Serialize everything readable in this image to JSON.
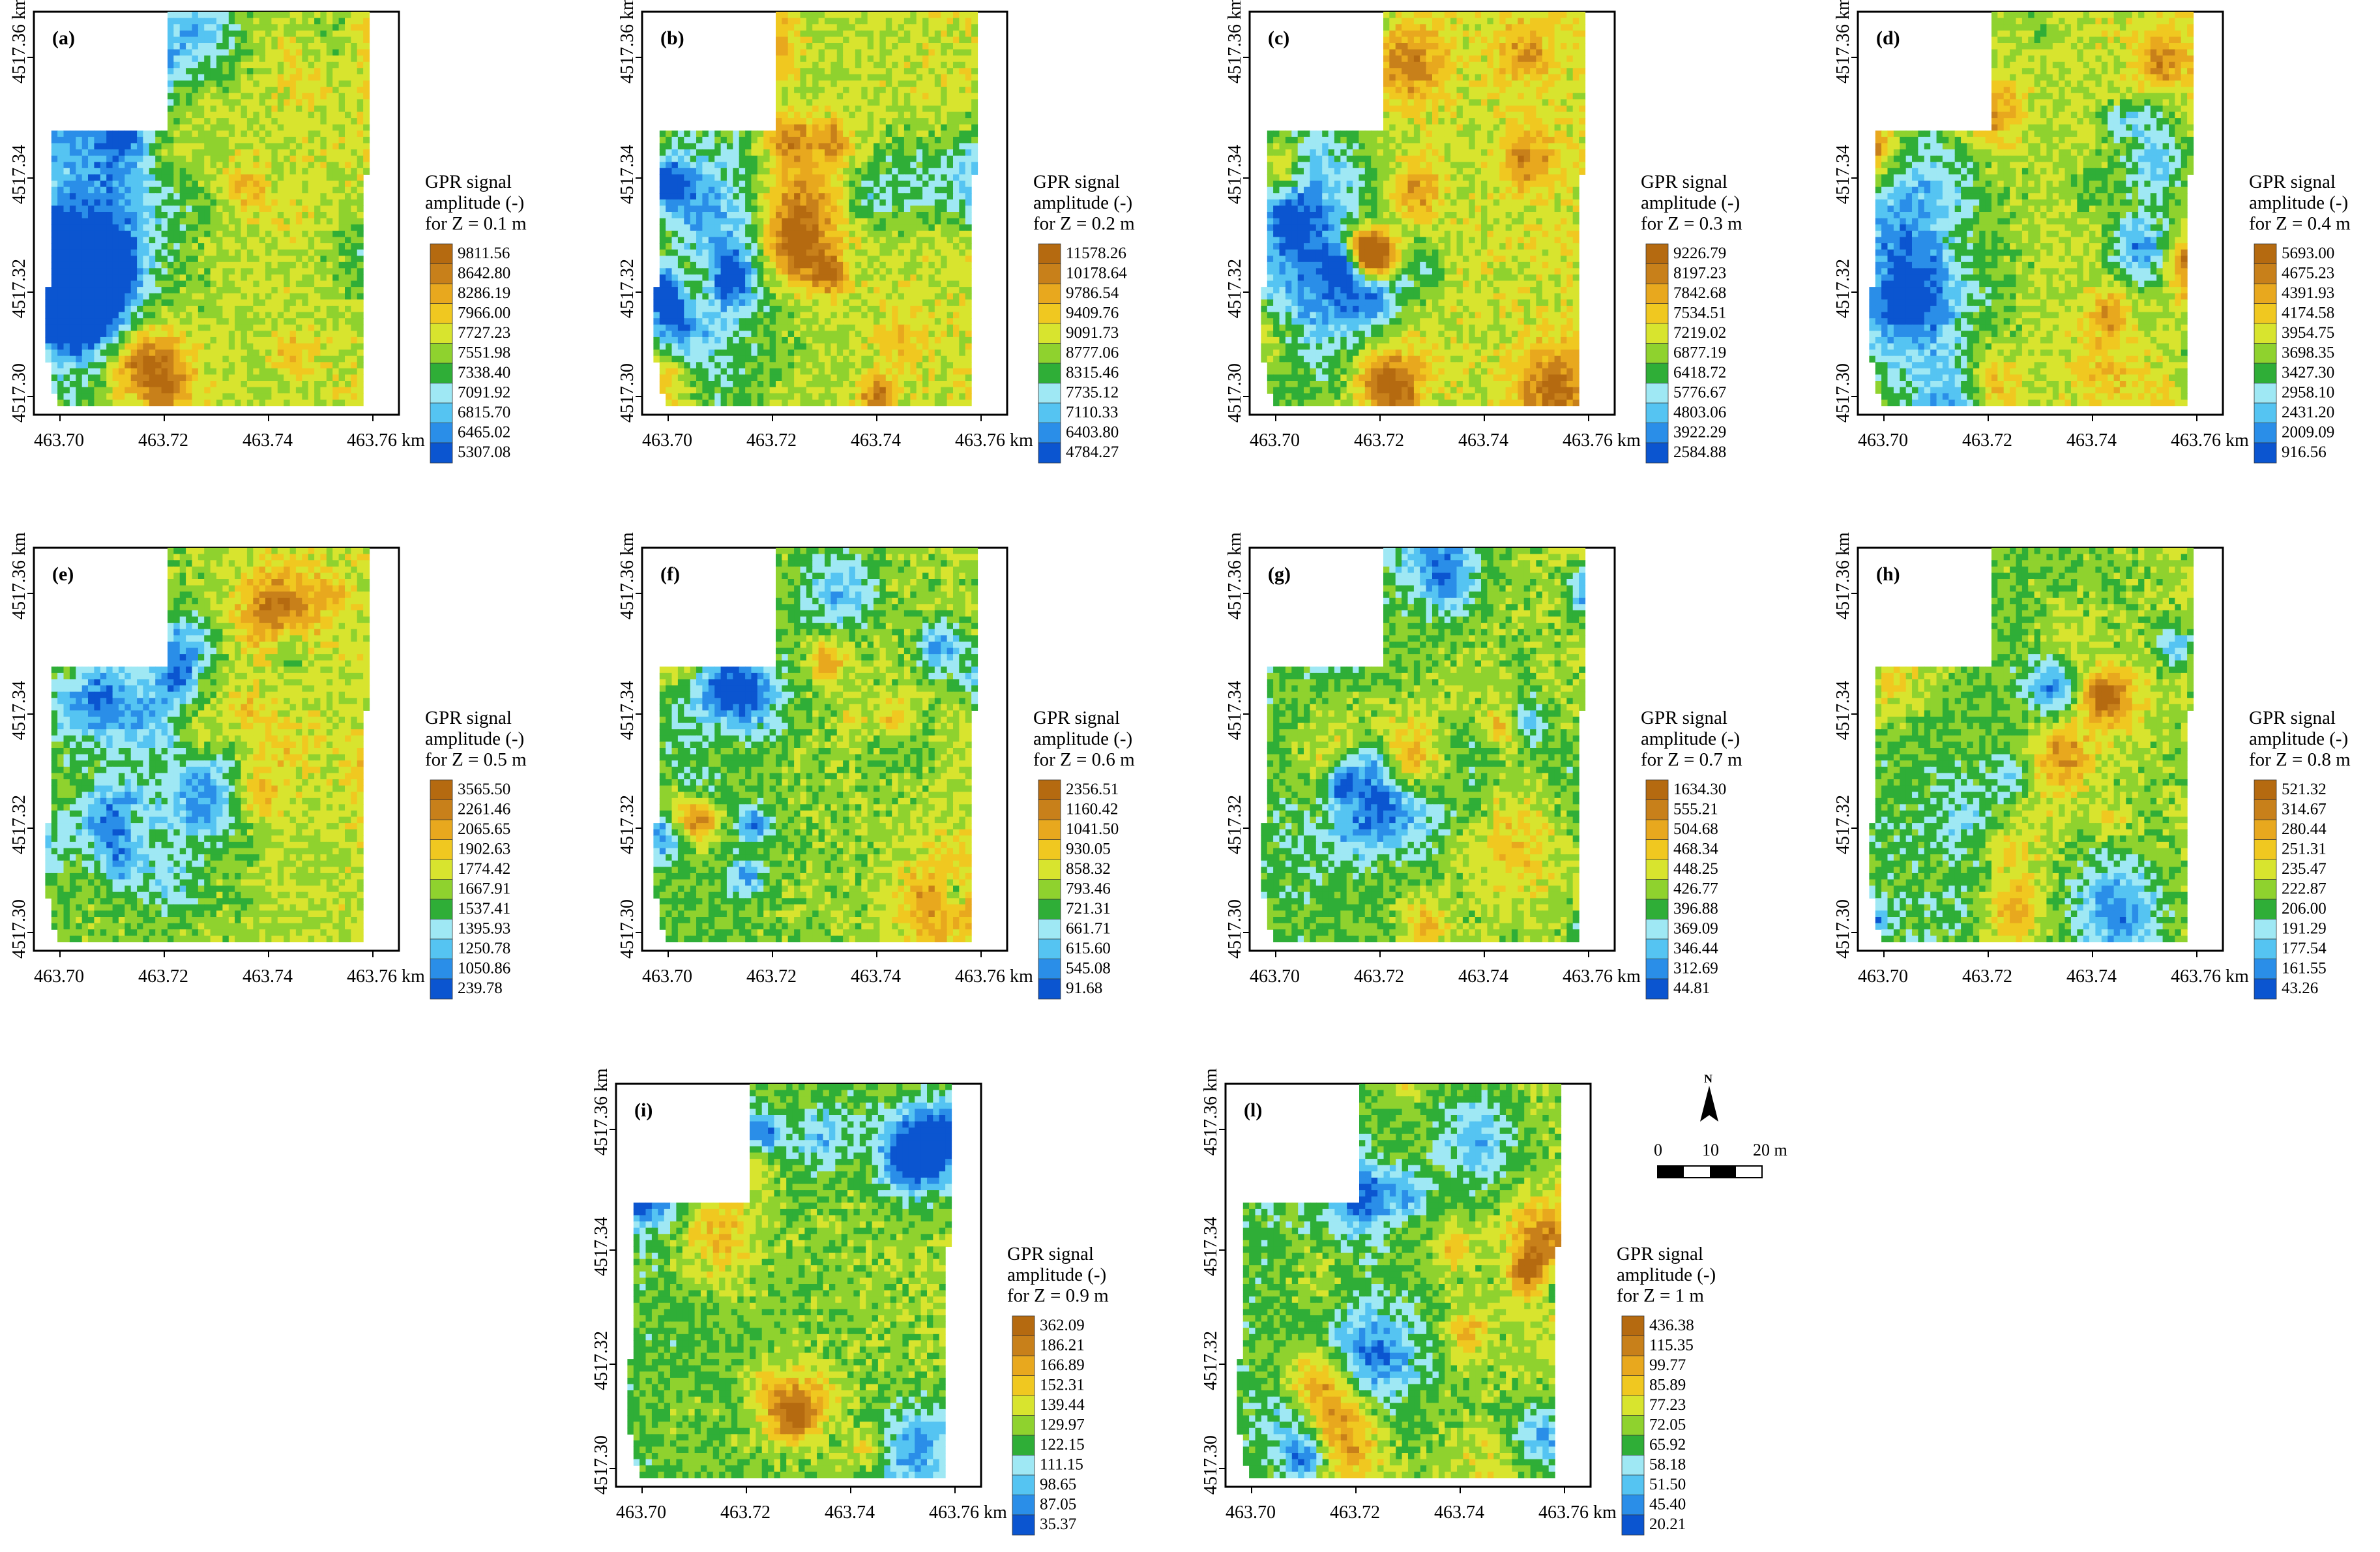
{
  "figure": {
    "x_ticks": [
      "463.70",
      "463.72",
      "463.74",
      "463.76 km"
    ],
    "y_ticks": [
      "4517.30",
      "4517.32",
      "4517.34",
      "4517.36 km"
    ],
    "legend_title": [
      "GPR signal",
      "amplitude (-)"
    ],
    "palette": [
      "#0b55d0",
      "#2a8ee8",
      "#55c4f2",
      "#9fe8f4",
      "#2fae37",
      "#8fd22e",
      "#d8e42e",
      "#f0c820",
      "#e8a81e",
      "#c8801a",
      "#b56a10"
    ]
  },
  "panels": [
    {
      "label": "(a)",
      "depth": "for Z = 0.1 m",
      "legend": [
        "9811.56",
        "8642.80",
        "8286.19",
        "7966.00",
        "7727.23",
        "7551.98",
        "7338.40",
        "7091.92",
        "6815.70",
        "6465.02",
        "5307.08"
      ],
      "seed": 11,
      "bias": 0.08
    },
    {
      "label": "(b)",
      "depth": "for Z = 0.2 m",
      "legend": [
        "11578.26",
        "10178.64",
        "9786.54",
        "9409.76",
        "9091.73",
        "8777.06",
        "8315.46",
        "7735.12",
        "7110.33",
        "6403.80",
        "4784.27"
      ],
      "seed": 23,
      "bias": 0.1
    },
    {
      "label": "(c)",
      "depth": "for Z = 0.3 m",
      "legend": [
        "9226.79",
        "8197.23",
        "7842.68",
        "7534.51",
        "7219.02",
        "6877.19",
        "6418.72",
        "5776.67",
        "4803.06",
        "3922.29",
        "2584.88"
      ],
      "seed": 37,
      "bias": 0.12
    },
    {
      "label": "(d)",
      "depth": "for Z = 0.4 m",
      "legend": [
        "5693.00",
        "4675.23",
        "4391.93",
        "4174.58",
        "3954.75",
        "3698.35",
        "3427.30",
        "2958.10",
        "2431.20",
        "2009.09",
        "916.56"
      ],
      "seed": 41,
      "bias": 0.1
    },
    {
      "label": "(e)",
      "depth": "for Z = 0.5 m",
      "legend": [
        "3565.50",
        "2261.46",
        "2065.65",
        "1902.63",
        "1774.42",
        "1667.91",
        "1537.41",
        "1395.93",
        "1250.78",
        "1050.86",
        "239.78"
      ],
      "seed": 53,
      "bias": 0.05
    },
    {
      "label": "(f)",
      "depth": "for Z = 0.6 m",
      "legend": [
        "2356.51",
        "1160.42",
        "1041.50",
        "930.05",
        "858.32",
        "793.46",
        "721.31",
        "661.71",
        "615.60",
        "545.08",
        "91.68"
      ],
      "seed": 67,
      "bias": 0.0
    },
    {
      "label": "(g)",
      "depth": "for Z = 0.7 m",
      "legend": [
        "1634.30",
        "555.21",
        "504.68",
        "468.34",
        "448.25",
        "426.77",
        "396.88",
        "369.09",
        "346.44",
        "312.69",
        "44.81"
      ],
      "seed": 71,
      "bias": -0.05
    },
    {
      "label": "(h)",
      "depth": "for Z = 0.8 m",
      "legend": [
        "521.32",
        "314.67",
        "280.44",
        "251.31",
        "235.47",
        "222.87",
        "206.00",
        "191.29",
        "177.54",
        "161.55",
        "43.26"
      ],
      "seed": 83,
      "bias": -0.05
    },
    {
      "label": "(i)",
      "depth": "for Z = 0.9 m",
      "legend": [
        "362.09",
        "186.21",
        "166.89",
        "152.31",
        "139.44",
        "129.97",
        "122.15",
        "111.15",
        "98.65",
        "87.05",
        "35.37"
      ],
      "seed": 97,
      "bias": -0.05
    },
    {
      "label": "(l)",
      "depth": "for Z = 1 m",
      "legend": [
        "436.38",
        "115.35",
        "99.77",
        "85.89",
        "77.23",
        "72.05",
        "65.92",
        "58.18",
        "51.50",
        "45.40",
        "20.21"
      ],
      "seed": 101,
      "bias": -0.05
    }
  ],
  "north_arrow": {
    "label": "N"
  },
  "scale_bar": {
    "labels": [
      "0",
      "10",
      "20 m"
    ]
  }
}
